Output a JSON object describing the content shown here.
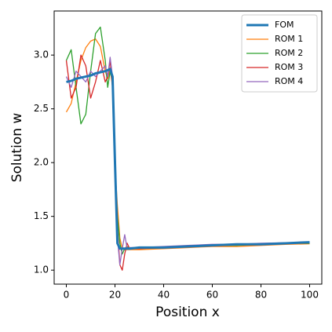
{
  "chart_data": {
    "type": "line",
    "xlabel": "Position x",
    "ylabel": "Solution w",
    "x": [
      0,
      2,
      4,
      6,
      8,
      10,
      12,
      14,
      16,
      17,
      18,
      19,
      20,
      21,
      22,
      23,
      24,
      25,
      26,
      30,
      40,
      50,
      60,
      70,
      80,
      90,
      100
    ],
    "series": [
      {
        "name": "FOM",
        "color": "#1f77b4",
        "width": 3,
        "values": [
          2.75,
          2.76,
          2.78,
          2.79,
          2.8,
          2.81,
          2.83,
          2.84,
          2.85,
          2.86,
          2.87,
          2.8,
          2.0,
          1.25,
          1.2,
          1.2,
          1.2,
          1.2,
          1.2,
          1.21,
          1.21,
          1.22,
          1.23,
          1.24,
          1.24,
          1.25,
          1.26
        ]
      },
      {
        "name": "ROM 1",
        "color": "#ff7f0e",
        "width": 1.3,
        "values": [
          2.47,
          2.55,
          2.75,
          2.95,
          3.07,
          3.13,
          3.15,
          3.08,
          2.85,
          2.78,
          2.88,
          2.7,
          1.95,
          1.6,
          1.3,
          1.2,
          1.19,
          1.19,
          1.19,
          1.19,
          1.2,
          1.21,
          1.22,
          1.22,
          1.23,
          1.24,
          1.245
        ]
      },
      {
        "name": "ROM 2",
        "color": "#2ca02c",
        "width": 1.3,
        "values": [
          2.95,
          3.05,
          2.7,
          2.36,
          2.45,
          2.85,
          3.2,
          3.26,
          2.95,
          2.7,
          2.85,
          2.75,
          2.0,
          1.5,
          1.25,
          1.15,
          1.2,
          1.22,
          1.2,
          1.2,
          1.21,
          1.22,
          1.23,
          1.23,
          1.24,
          1.25,
          1.25
        ]
      },
      {
        "name": "ROM 3",
        "color": "#d62728",
        "width": 1.3,
        "values": [
          2.95,
          2.6,
          2.7,
          3.0,
          2.9,
          2.6,
          2.75,
          2.95,
          2.75,
          2.8,
          2.95,
          2.7,
          2.1,
          1.4,
          1.05,
          1.0,
          1.15,
          1.25,
          1.2,
          1.2,
          1.21,
          1.22,
          1.23,
          1.24,
          1.24,
          1.25,
          1.255
        ]
      },
      {
        "name": "ROM 4",
        "color": "#9467bd",
        "width": 1.3,
        "values": [
          2.8,
          2.7,
          2.85,
          2.8,
          2.75,
          2.85,
          2.8,
          2.85,
          2.9,
          2.8,
          2.98,
          2.8,
          2.0,
          1.3,
          1.05,
          1.2,
          1.33,
          1.2,
          1.21,
          1.21,
          1.22,
          1.23,
          1.24,
          1.24,
          1.25,
          1.255,
          1.26
        ]
      }
    ],
    "xlim": [
      -5,
      105
    ],
    "ylim": [
      0.87,
      3.41
    ],
    "xticks": [
      0,
      20,
      40,
      60,
      80,
      100
    ],
    "yticks": [
      {
        "value": 1.0,
        "label": "1.0"
      },
      1.5,
      {
        "value": 2.0,
        "label": "2.0"
      },
      2.5,
      {
        "value": 3.0,
        "label": "3.0"
      }
    ],
    "legend": "upper right"
  }
}
